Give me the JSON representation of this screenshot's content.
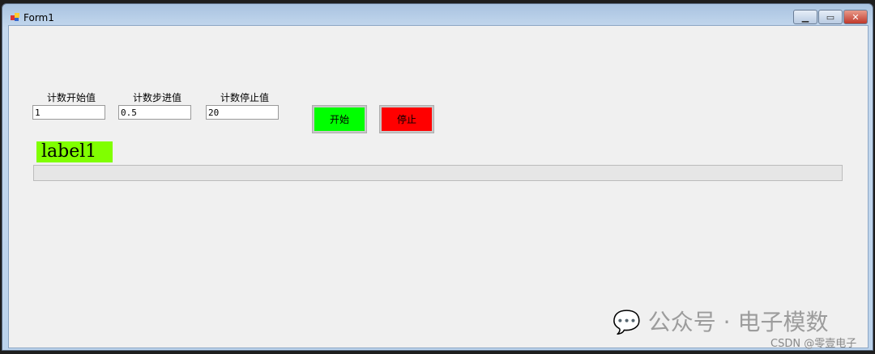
{
  "window": {
    "title": "Form1"
  },
  "fields": [
    {
      "label": "计数开始值",
      "value": "1"
    },
    {
      "label": "计数步进值",
      "value": "0.5"
    },
    {
      "label": "计数停止值",
      "value": "20"
    }
  ],
  "buttons": {
    "start": "开始",
    "stop": "停止",
    "start_color": "#00ff00",
    "stop_color": "#ff0000"
  },
  "label1": {
    "text": "label1",
    "bg": "#80ff00"
  },
  "progress": {
    "value": 0
  },
  "watermark": {
    "main": "公众号 · 电子模数",
    "sub": "CSDN @零壹电子"
  }
}
